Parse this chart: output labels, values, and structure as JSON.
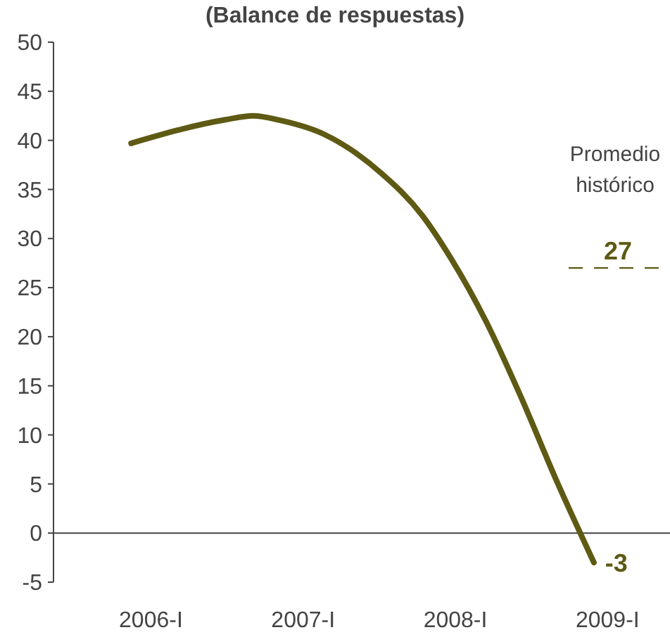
{
  "chart_data": {
    "type": "line",
    "title": "(Balance de respuestas)",
    "xlim": [
      2005.36,
      2009.41
    ],
    "xticks": [
      {
        "value": 2006,
        "label": "2006-I"
      },
      {
        "value": 2007,
        "label": "2007-I"
      },
      {
        "value": 2008,
        "label": "2008-I"
      },
      {
        "value": 2009,
        "label": "2009-I"
      }
    ],
    "ylim": [
      -5,
      50
    ],
    "yticks": [
      -5,
      0,
      5,
      10,
      15,
      20,
      25,
      30,
      35,
      40,
      45,
      50
    ],
    "series": [
      {
        "color": "#5e5a14",
        "x": [
          2005.87,
          2006.49,
          2006.67,
          2006.86,
          2007.14,
          2007.51,
          2007.78,
          2007.97,
          2008.2,
          2008.43,
          2008.66,
          2008.91
        ],
        "values": [
          39.7,
          42.1,
          42.5,
          42,
          40.6,
          36.7,
          32.4,
          28,
          21.6,
          13.9,
          5.5,
          -3
        ]
      }
    ],
    "annotations": [
      {
        "text": "-3",
        "x": 2008.91,
        "y": -3
      },
      "Promedio histórico"
    ],
    "ref_lines": [
      {
        "axis": "y",
        "value": 27,
        "label": "27",
        "line_style": "dashed",
        "color": "#5e5a14"
      }
    ]
  }
}
